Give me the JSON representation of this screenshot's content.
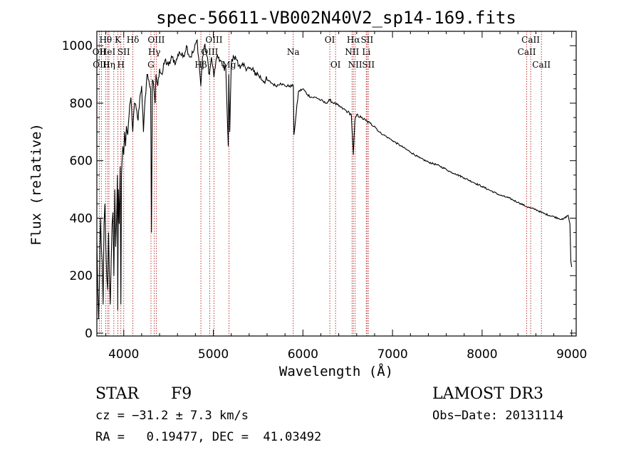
{
  "chart_data": {
    "type": "line",
    "title": "spec-56611-VB002N40V2_sp14-169.fits",
    "xlabel": "Wavelength (Å)",
    "ylabel": "Flux (relative)",
    "xlim": [
      3700,
      9050
    ],
    "ylim": [
      -10,
      1050
    ],
    "xticks": [
      4000,
      5000,
      6000,
      7000,
      8000,
      9000
    ],
    "yticks": [
      0,
      200,
      400,
      600,
      800,
      1000
    ],
    "grid": false,
    "series": [
      {
        "name": "flux",
        "x": [
          3700,
          3710,
          3720,
          3730,
          3740,
          3750,
          3760,
          3770,
          3780,
          3790,
          3800,
          3810,
          3820,
          3830,
          3840,
          3850,
          3860,
          3870,
          3880,
          3890,
          3900,
          3910,
          3920,
          3930,
          3933,
          3940,
          3950,
          3960,
          3968,
          3975,
          3990,
          4000,
          4010,
          4020,
          4030,
          4045,
          4060,
          4080,
          4101,
          4120,
          4140,
          4160,
          4180,
          4200,
          4220,
          4240,
          4260,
          4280,
          4300,
          4310,
          4320,
          4340,
          4350,
          4360,
          4380,
          4400,
          4430,
          4460,
          4500,
          4540,
          4580,
          4620,
          4660,
          4700,
          4740,
          4780,
          4820,
          4861,
          4880,
          4900,
          4920,
          4957,
          4980,
          5007,
          5030,
          5060,
          5100,
          5140,
          5167,
          5172,
          5183,
          5200,
          5230,
          5270,
          5300,
          5350,
          5400,
          5450,
          5500,
          5550,
          5600,
          5650,
          5700,
          5750,
          5800,
          5850,
          5893,
          5900,
          5950,
          6000,
          6050,
          6100,
          6150,
          6200,
          6250,
          6300,
          6350,
          6400,
          6450,
          6500,
          6540,
          6563,
          6580,
          6600,
          6650,
          6700,
          6750,
          6800,
          6850,
          6900,
          6950,
          7000,
          7100,
          7200,
          7300,
          7400,
          7500,
          7600,
          7650,
          7700,
          7800,
          7900,
          8000,
          8100,
          8200,
          8300,
          8400,
          8498,
          8542,
          8600,
          8662,
          8700,
          8800,
          8900,
          8960,
          8980,
          8990,
          9000
        ],
        "values": [
          320,
          150,
          50,
          200,
          400,
          300,
          250,
          100,
          380,
          450,
          300,
          200,
          150,
          350,
          200,
          100,
          250,
          380,
          420,
          200,
          500,
          300,
          400,
          550,
          80,
          500,
          380,
          580,
          100,
          550,
          650,
          620,
          700,
          650,
          720,
          690,
          760,
          820,
          700,
          800,
          780,
          740,
          820,
          860,
          700,
          820,
          900,
          880,
          850,
          350,
          880,
          840,
          800,
          900,
          860,
          920,
          900,
          950,
          930,
          960,
          940,
          980,
          960,
          1000,
          960,
          980,
          1020,
          860,
          960,
          1000,
          980,
          900,
          960,
          890,
          950,
          960,
          930,
          920,
          650,
          900,
          700,
          940,
          960,
          950,
          920,
          930,
          920,
          910,
          900,
          880,
          880,
          870,
          860,
          870,
          860,
          860,
          860,
          690,
          840,
          850,
          830,
          820,
          820,
          810,
          800,
          810,
          800,
          790,
          780,
          770,
          760,
          620,
          740,
          760,
          750,
          740,
          730,
          720,
          700,
          690,
          680,
          670,
          650,
          630,
          610,
          595,
          585,
          570,
          560,
          555,
          540,
          525,
          510,
          495,
          480,
          470,
          455,
          440,
          435,
          430,
          420,
          415,
          405,
          395,
          410,
          380,
          250,
          230
        ]
      }
    ],
    "line_markers": [
      {
        "w": 3727,
        "label": "OII",
        "row": 1
      },
      {
        "w": 3750,
        "label": "OIII",
        "row": 2
      },
      {
        "w": 3798,
        "label": "Hθ",
        "row": 0
      },
      {
        "w": 3820,
        "label": "HeI",
        "row": 1
      },
      {
        "w": 3835,
        "label": "Hη",
        "row": 2
      },
      {
        "w": 3889,
        "label": "",
        "row": 0
      },
      {
        "w": 3934,
        "label": "K",
        "row": 0
      },
      {
        "w": 3968,
        "label": "H",
        "row": 2
      },
      {
        "w": 4000,
        "label": "SII",
        "row": 1
      },
      {
        "w": 4102,
        "label": "Hδ",
        "row": 0
      },
      {
        "w": 4304,
        "label": "G",
        "row": 2
      },
      {
        "w": 4341,
        "label": "Hγ",
        "row": 1
      },
      {
        "w": 4363,
        "label": "OIII",
        "row": 0
      },
      {
        "w": 4861,
        "label": "Hβ",
        "row": 2
      },
      {
        "w": 4959,
        "label": "OIII",
        "row": 1
      },
      {
        "w": 5007,
        "label": "OIII",
        "row": 0
      },
      {
        "w": 5175,
        "label": "Mg",
        "row": 2
      },
      {
        "w": 5892,
        "label": "Na",
        "row": 1
      },
      {
        "w": 6300,
        "label": "OI",
        "row": 0
      },
      {
        "w": 6364,
        "label": "OI",
        "row": 2
      },
      {
        "w": 6548,
        "label": "NII",
        "row": 1
      },
      {
        "w": 6563,
        "label": "Hα",
        "row": 0
      },
      {
        "w": 6583,
        "label": "NII",
        "row": 2
      },
      {
        "w": 6707,
        "label": "Li",
        "row": 1
      },
      {
        "w": 6716,
        "label": "SII",
        "row": 0
      },
      {
        "w": 6731,
        "label": "SII",
        "row": 2
      },
      {
        "w": 8498,
        "label": "CaII",
        "row": 1
      },
      {
        "w": 8542,
        "label": "CaII",
        "row": 0
      },
      {
        "w": 8662,
        "label": "CaII",
        "row": 2
      }
    ]
  },
  "info": {
    "object_type": "STAR",
    "subclass": "F9",
    "survey": "LAMOST DR3",
    "cz": "cz = −31.2 ± 7.3 km/s",
    "obs_date": "Obs−Date: 20131114",
    "coords": "RA =   0.19477, DEC =  41.03492"
  }
}
